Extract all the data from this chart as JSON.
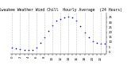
{
  "title": "Milwaukee Weather Wind Chill  Hourly Average  (24 Hours)",
  "title_fontsize": 3.5,
  "x": [
    0,
    1,
    2,
    3,
    4,
    5,
    6,
    7,
    8,
    9,
    10,
    11,
    12,
    13,
    14,
    15,
    16,
    17,
    18,
    19,
    20,
    21,
    22,
    23
  ],
  "y": [
    4.5,
    3.8,
    3.0,
    2.2,
    1.8,
    2.0,
    4.5,
    9.0,
    14.5,
    21.0,
    27.0,
    31.5,
    33.5,
    35.0,
    35.5,
    34.5,
    31.5,
    26.0,
    19.5,
    14.5,
    11.0,
    9.0,
    8.5,
    8.0
  ],
  "ylim": [
    -2,
    40
  ],
  "xlim": [
    -0.5,
    23.5
  ],
  "yticks": [
    0,
    5,
    10,
    15,
    20,
    25,
    30,
    35
  ],
  "ytick_labels": [
    "0",
    "5",
    "10",
    "15",
    "20",
    "25",
    "30",
    "35"
  ],
  "xtick_positions": [
    0,
    1,
    2,
    3,
    4,
    5,
    6,
    7,
    8,
    9,
    10,
    11,
    12,
    13,
    14,
    15,
    16,
    17,
    18,
    19,
    20,
    21,
    22,
    23
  ],
  "grid_positions": [
    0,
    2,
    4,
    6,
    8,
    10,
    12,
    14,
    16,
    18,
    20,
    22
  ],
  "dot_color": "#0000cc",
  "dot_size": 1.2,
  "background_color": "#ffffff",
  "grid_color": "#aaaaaa"
}
